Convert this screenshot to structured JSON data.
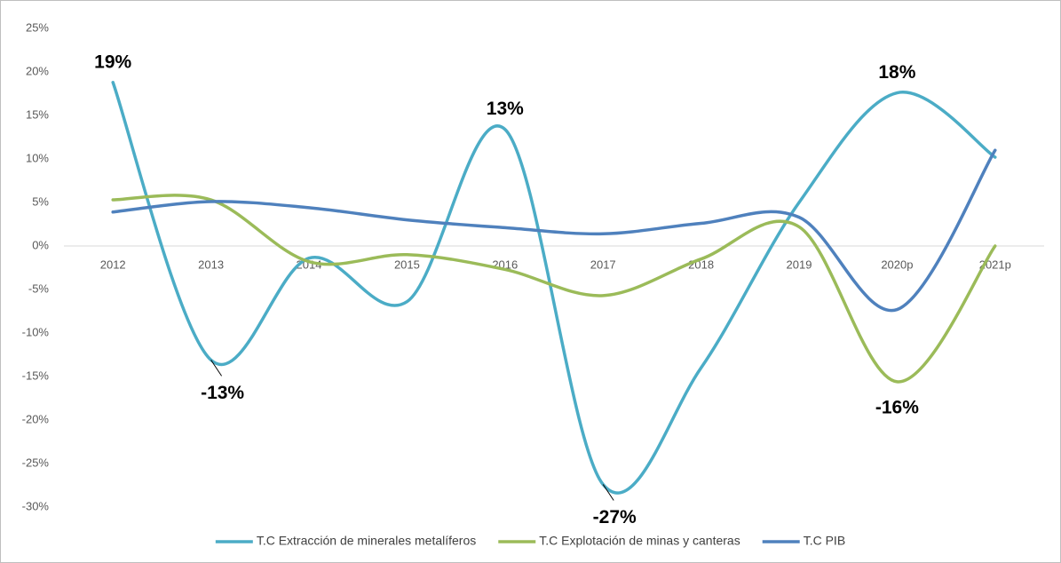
{
  "chart_data": {
    "type": "line",
    "categories": [
      "2012",
      "2013",
      "2014",
      "2015",
      "2016",
      "2017",
      "2018",
      "2019",
      "2020p",
      "2021p"
    ],
    "series": [
      {
        "name": "T.C Extracción de minerales metalíferos",
        "color": "#4bacc6",
        "values": [
          18.8,
          -13.1,
          -1.4,
          -6.4,
          13.4,
          -27.4,
          -14,
          5,
          17.6,
          10.2
        ],
        "value_labels": [
          "19%",
          "-13%",
          null,
          null,
          "13%",
          "-27%",
          null,
          null,
          "18%",
          null
        ]
      },
      {
        "name": "T.C Explotación de minas y canteras",
        "color": "#9bbb59",
        "values": [
          5.3,
          5.3,
          -1.8,
          -1,
          -2.7,
          -5.7,
          -1.5,
          2.2,
          -15.6,
          0
        ],
        "value_labels": [
          null,
          null,
          null,
          null,
          null,
          null,
          null,
          null,
          "-16%",
          null
        ]
      },
      {
        "name": "T.C PIB",
        "color": "#4f81bd",
        "values": [
          3.9,
          5.1,
          4.4,
          3.0,
          2.1,
          1.4,
          2.6,
          3.3,
          -7.3,
          11
        ],
        "value_labels": [
          null,
          null,
          null,
          null,
          null,
          null,
          null,
          null,
          null,
          null
        ]
      }
    ],
    "ylim": [
      -30,
      25
    ],
    "yticks": [
      {
        "value": -30,
        "label": "-30%"
      },
      {
        "value": -25,
        "label": "-25%"
      },
      {
        "value": -20,
        "label": "-20%"
      },
      {
        "value": -15,
        "label": "-15%"
      },
      {
        "value": -10,
        "label": "-10%"
      },
      {
        "value": -5,
        "label": "-5%"
      },
      {
        "value": 0,
        "label": "0%"
      },
      {
        "value": 5,
        "label": "5%"
      },
      {
        "value": 10,
        "label": "10%"
      },
      {
        "value": 15,
        "label": "15%"
      },
      {
        "value": 20,
        "label": "20%"
      },
      {
        "value": 25,
        "label": "25%"
      }
    ],
    "grid": false,
    "legend": "bottom"
  }
}
